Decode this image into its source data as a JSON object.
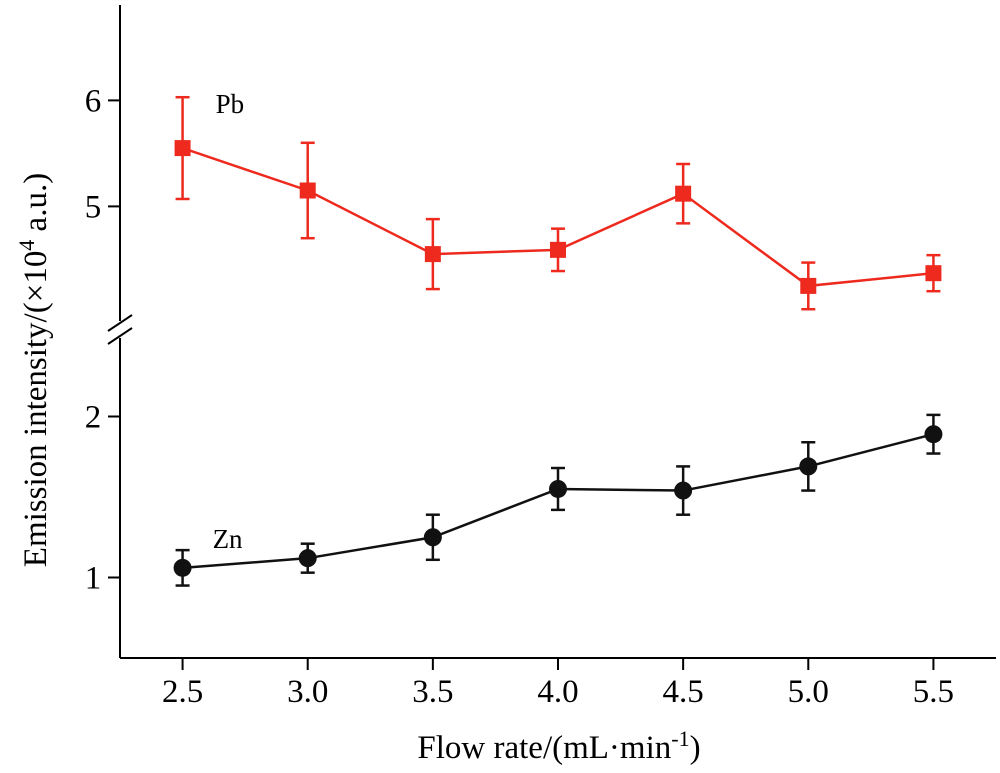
{
  "chart_data": {
    "type": "line",
    "xlabel": "Flow rate/(mL·min",
    "xlabel_sup": "-1",
    "xlabel_end": ")",
    "ylabel": "Emission intensity/(×10",
    "ylabel_sup": "4",
    "ylabel_end": " a.u.)",
    "x": [
      2.5,
      3.0,
      3.5,
      4.0,
      4.5,
      5.0,
      5.5
    ],
    "x_tick_labels": [
      "2.5",
      "3.0",
      "3.5",
      "4.0",
      "4.5",
      "5.0",
      "5.5"
    ],
    "xlim": [
      2.25,
      5.75
    ],
    "axis_break": true,
    "upper_panel": {
      "ylim": [
        3.9,
        6.9
      ],
      "y_ticks": [
        5,
        6
      ],
      "y_tick_labels": [
        "5",
        "6"
      ]
    },
    "lower_panel": {
      "ylim": [
        0.5,
        2.5
      ],
      "y_ticks": [
        1,
        2
      ],
      "y_tick_labels": [
        "1",
        "2"
      ]
    },
    "series": [
      {
        "name": "Pb",
        "panel": "upper",
        "color": "#ee2a1e",
        "marker": "square",
        "values": [
          5.55,
          5.15,
          4.55,
          4.59,
          5.12,
          4.25,
          4.37
        ],
        "errors": [
          0.48,
          0.45,
          0.33,
          0.2,
          0.28,
          0.22,
          0.17
        ]
      },
      {
        "name": "Zn",
        "panel": "lower",
        "color": "#111111",
        "marker": "circle",
        "values": [
          1.06,
          1.12,
          1.25,
          1.55,
          1.54,
          1.69,
          1.89
        ],
        "errors": [
          0.11,
          0.09,
          0.14,
          0.13,
          0.15,
          0.15,
          0.12
        ]
      }
    ]
  }
}
